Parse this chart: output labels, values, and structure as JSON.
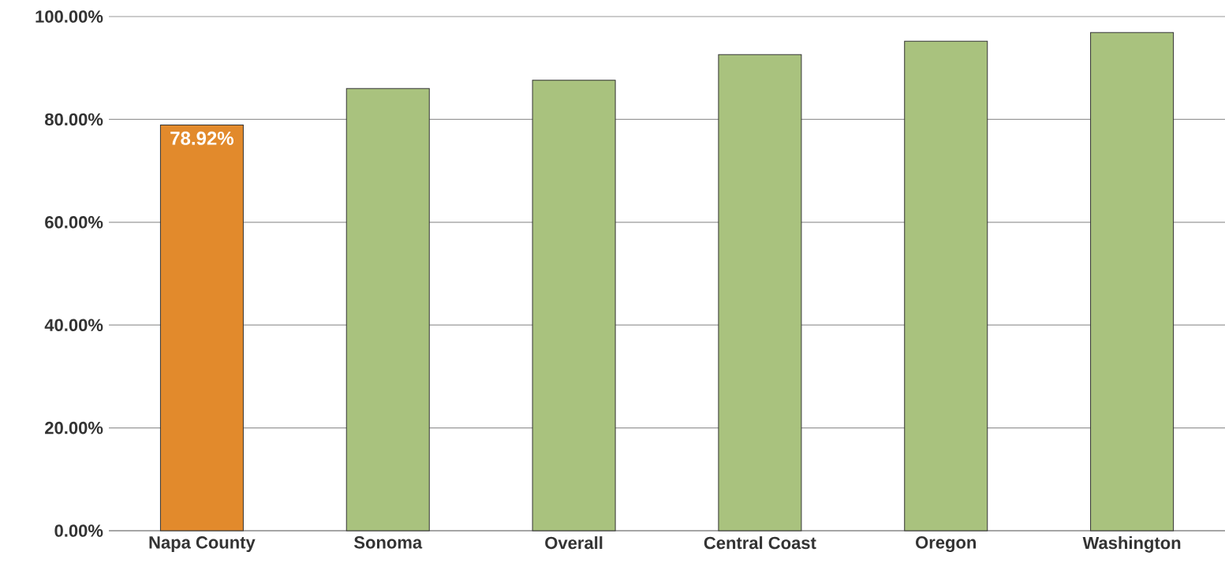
{
  "chart_data": {
    "type": "bar",
    "categories": [
      "Napa County",
      "Sonoma",
      "Overall",
      "Central Coast",
      "Oregon",
      "Washington"
    ],
    "values": [
      78.92,
      86.0,
      87.6,
      92.6,
      95.2,
      96.9
    ],
    "value_labels": [
      "78.92%",
      null,
      null,
      null,
      null,
      null
    ],
    "colors": [
      "#e28a2c",
      "#a9c27e",
      "#a9c27e",
      "#a9c27e",
      "#a9c27e",
      "#a9c27e"
    ],
    "ylim": [
      0,
      100
    ],
    "yticks": [
      {
        "value": 0,
        "label": "0.00%"
      },
      {
        "value": 20,
        "label": "20.00%"
      },
      {
        "value": 40,
        "label": "40.00%"
      },
      {
        "value": 60,
        "label": "60.00%"
      },
      {
        "value": 80,
        "label": "80.00%"
      },
      {
        "value": 100,
        "label": "100.00%"
      }
    ],
    "grid": "y"
  }
}
